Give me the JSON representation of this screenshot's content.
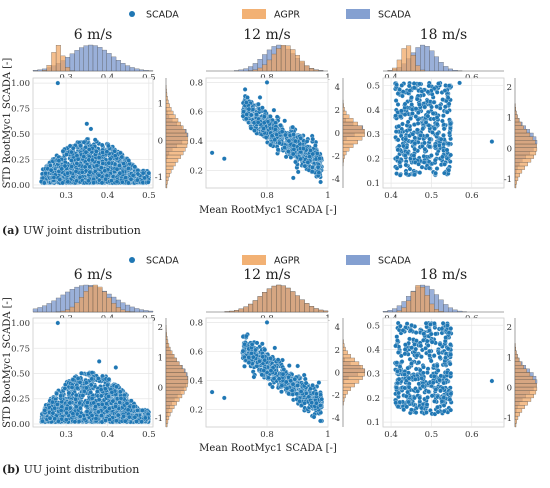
{
  "colors": {
    "scatter": "#1f77b4",
    "agpr": "#f0a35c",
    "scada_hist": "#6f8fc9",
    "grid": "#e6e6e6",
    "frame": "#cccccc"
  },
  "legend": [
    "SCADA",
    "AGPR",
    "SCADA"
  ],
  "ylabel": "STD RootMyc1 SCADA [-]",
  "xlabel": "Mean RootMyc1 SCADA [-]",
  "captions": [
    {
      "tag": "(a)",
      "text": " UW joint distribution"
    },
    {
      "tag": "(b)",
      "text": " UU joint distribution"
    }
  ],
  "chart_data": [
    {
      "type": "scatter",
      "panel": "a",
      "title": "6 m/s",
      "xlim": [
        0.22,
        0.51
      ],
      "ylim": [
        -0.03,
        1.05
      ],
      "xticks": [
        0.3,
        0.4,
        0.5
      ],
      "yticks": [
        0.0,
        0.25,
        0.5,
        0.75,
        1.0
      ],
      "ytick_labels": [
        "0.00",
        "0.25",
        "0.50",
        "0.75",
        "1.00"
      ],
      "top_hist": {
        "xlim": [
          0.22,
          0.51
        ],
        "ticks": [
          0.3,
          0.4,
          0.5
        ],
        "agpr_center": 0.28,
        "agpr_spread": 0.012,
        "scada_center": 0.36,
        "scada_spread": 0.05
      },
      "right_hist": {
        "ylim": [
          -1.3,
          1.7
        ],
        "ticks": [
          -1,
          0,
          1
        ],
        "agpr_center": 0.0,
        "agpr_spread": 0.5,
        "scada_center": 0.15,
        "scada_spread": 0.25
      },
      "cloud": {
        "n": 1500,
        "xmin": 0.24,
        "xmax": 0.5,
        "yfloor": 0.02,
        "peak": 0.35
      },
      "outliers": [
        [
          0.28,
          1.0
        ],
        [
          0.35,
          0.6
        ],
        [
          0.36,
          0.55
        ]
      ]
    },
    {
      "type": "scatter",
      "panel": "a",
      "title": "12 m/s",
      "xlim": [
        0.6,
        1.0
      ],
      "ylim": [
        0.08,
        0.83
      ],
      "xticks": [
        0.8,
        1.0
      ],
      "yticks": [
        0.2,
        0.4,
        0.6,
        0.8
      ],
      "ytick_labels": [
        "0.2",
        "0.4",
        "0.6",
        "0.8"
      ],
      "top_hist": {
        "xlim": [
          0.6,
          1.0
        ],
        "ticks": [
          0.8,
          1.0
        ],
        "agpr_center": 0.86,
        "agpr_spread": 0.04,
        "scada_center": 0.84,
        "scada_spread": 0.05
      },
      "right_hist": {
        "ylim": [
          -4.8,
          4.8
        ],
        "ticks": [
          -4,
          -2,
          0,
          2,
          4
        ],
        "agpr_center": 0.0,
        "agpr_spread": 0.9,
        "scada_center": 0.3,
        "scada_spread": 0.4
      },
      "cloud": {
        "n": 700,
        "kind": "diag"
      },
      "outliers": [
        [
          0.8,
          0.8
        ],
        [
          0.62,
          0.32
        ],
        [
          0.66,
          0.28
        ]
      ]
    },
    {
      "type": "scatter",
      "panel": "a",
      "title": "18 m/s",
      "xlim": [
        0.38,
        0.68
      ],
      "ylim": [
        0.08,
        0.53
      ],
      "xticks": [
        0.4,
        0.5,
        0.6
      ],
      "yticks": [
        0.1,
        0.2,
        0.3,
        0.4,
        0.5
      ],
      "ytick_labels": [
        "0.1",
        "0.2",
        "0.3",
        "0.4",
        "0.5"
      ],
      "top_hist": {
        "xlim": [
          0.38,
          0.68
        ],
        "ticks": [
          0.4,
          0.6
        ],
        "agpr_center": 0.44,
        "agpr_spread": 0.015,
        "scada_center": 0.48,
        "scada_spread": 0.03
      },
      "right_hist": {
        "ylim": [
          -1.3,
          2.3
        ],
        "ticks": [
          -1,
          0,
          1,
          2
        ],
        "agpr_center": 0.0,
        "agpr_spread": 0.5,
        "scada_center": 0.2,
        "scada_spread": 0.4
      },
      "cloud": {
        "n": 450,
        "kind": "box",
        "xmin": 0.41,
        "xmax": 0.55,
        "ymin": 0.13,
        "ymax": 0.51
      },
      "outliers": [
        [
          0.65,
          0.27
        ],
        [
          0.57,
          0.51
        ]
      ]
    },
    {
      "type": "scatter",
      "panel": "b",
      "title": "6 m/s",
      "xlim": [
        0.22,
        0.51
      ],
      "ylim": [
        -0.03,
        1.05
      ],
      "xticks": [
        0.3,
        0.4,
        0.5
      ],
      "yticks": [
        0.0,
        0.25,
        0.5,
        0.75,
        1.0
      ],
      "ytick_labels": [
        "0.00",
        "0.25",
        "0.50",
        "0.75",
        "1.00"
      ],
      "top_hist": {
        "xlim": [
          0.22,
          0.51
        ],
        "ticks": [
          0.3,
          0.4,
          0.5
        ],
        "agpr_center": 0.37,
        "agpr_spread": 0.03,
        "scada_center": 0.35,
        "scada_spread": 0.06
      },
      "right_hist": {
        "ylim": [
          -1.3,
          2.3
        ],
        "ticks": [
          -1,
          0,
          1,
          2
        ],
        "agpr_center": 0.2,
        "agpr_spread": 0.6,
        "scada_center": 0.3,
        "scada_spread": 0.5
      },
      "cloud": {
        "n": 1500,
        "xmin": 0.24,
        "xmax": 0.5,
        "yfloor": 0.02,
        "peak": 0.42
      },
      "outliers": [
        [
          0.28,
          1.0
        ],
        [
          0.38,
          0.62
        ],
        [
          0.42,
          0.56
        ]
      ]
    },
    {
      "type": "scatter",
      "panel": "b",
      "title": "12 m/s",
      "xlim": [
        0.6,
        1.0
      ],
      "ylim": [
        0.08,
        0.83
      ],
      "xticks": [
        0.8,
        1.0
      ],
      "yticks": [
        0.2,
        0.4,
        0.6,
        0.8
      ],
      "ytick_labels": [
        "0.2",
        "0.4",
        "0.6",
        "0.8"
      ],
      "top_hist": {
        "xlim": [
          0.6,
          1.0
        ],
        "ticks": [
          0.8,
          1.0
        ],
        "agpr_center": 0.84,
        "agpr_spread": 0.06,
        "scada_center": 0.84,
        "scada_spread": 0.06
      },
      "right_hist": {
        "ylim": [
          -4.8,
          4.8
        ],
        "ticks": [
          -4,
          -2,
          0,
          2,
          4
        ],
        "agpr_center": 0.0,
        "agpr_spread": 1.0,
        "scada_center": 0.2,
        "scada_spread": 0.4
      },
      "cloud": {
        "n": 700,
        "kind": "diag"
      },
      "outliers": [
        [
          0.8,
          0.8
        ],
        [
          0.62,
          0.32
        ],
        [
          0.66,
          0.28
        ]
      ]
    },
    {
      "type": "scatter",
      "panel": "b",
      "title": "18 m/s",
      "xlim": [
        0.38,
        0.68
      ],
      "ylim": [
        0.08,
        0.53
      ],
      "xticks": [
        0.4,
        0.5,
        0.6
      ],
      "yticks": [
        0.1,
        0.2,
        0.3,
        0.4,
        0.5
      ],
      "ytick_labels": [
        "0.1",
        "0.2",
        "0.3",
        "0.4",
        "0.5"
      ],
      "top_hist": {
        "xlim": [
          0.38,
          0.68
        ],
        "ticks": [
          0.4,
          0.6
        ],
        "agpr_center": 0.47,
        "agpr_spread": 0.02,
        "scada_center": 0.48,
        "scada_spread": 0.035
      },
      "right_hist": {
        "ylim": [
          -1.3,
          2.3
        ],
        "ticks": [
          -1,
          0,
          1,
          2
        ],
        "agpr_center": 0.0,
        "agpr_spread": 0.5,
        "scada_center": 0.2,
        "scada_spread": 0.4
      },
      "cloud": {
        "n": 450,
        "kind": "box",
        "xmin": 0.41,
        "xmax": 0.55,
        "ymin": 0.13,
        "ymax": 0.51
      },
      "outliers": [
        [
          0.65,
          0.27
        ],
        [
          0.54,
          0.5
        ]
      ]
    }
  ]
}
